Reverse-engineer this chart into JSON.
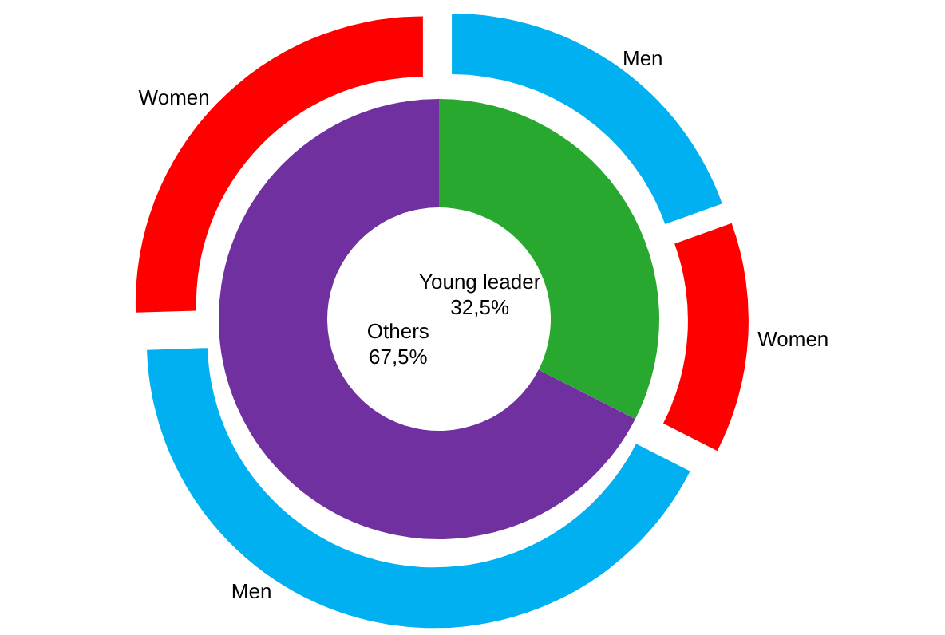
{
  "chart_data": [
    {
      "type": "donut",
      "categories": [
        "Young leader",
        "Others"
      ],
      "values": [
        32.5,
        67.5
      ],
      "value_labels": [
        "32,5%",
        "67,5%"
      ],
      "colors": [
        "#28a82e",
        "#7030a0"
      ]
    },
    {
      "type": "donut",
      "categories": [
        "Men",
        "Women",
        "Men",
        "Women"
      ],
      "values": [
        19.5,
        13,
        42,
        25.5
      ],
      "colors": [
        "#00b0f0",
        "#ff0000",
        "#00b0f0",
        "#ff0000"
      ]
    }
  ]
}
